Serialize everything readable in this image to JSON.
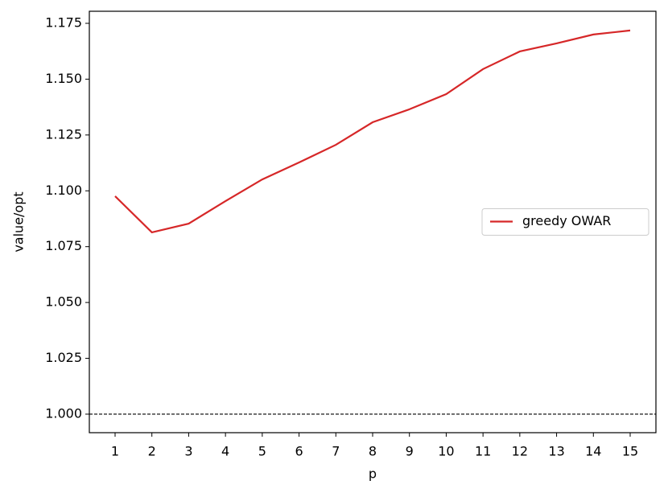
{
  "chart_data": {
    "type": "line",
    "xlabel": "p",
    "ylabel": "value/opt",
    "x": [
      1,
      2,
      3,
      4,
      5,
      6,
      7,
      8,
      9,
      10,
      11,
      12,
      13,
      14,
      15
    ],
    "series": [
      {
        "name": "greedy OWAR",
        "color": "#d62728",
        "values": [
          1.0976,
          1.0814,
          1.0853,
          1.0954,
          1.1051,
          1.1127,
          1.1206,
          1.1307,
          1.1365,
          1.1433,
          1.1545,
          1.1624,
          1.166,
          1.17,
          1.1718
        ]
      }
    ],
    "xlim": [
      0.3,
      15.7
    ],
    "xticks": [
      1,
      2,
      3,
      4,
      5,
      6,
      7,
      8,
      9,
      10,
      11,
      12,
      13,
      14,
      15
    ],
    "ylim": [
      0.9917,
      1.1804
    ],
    "yticks": [
      {
        "value": 1,
        "label": "1.000"
      },
      1.025,
      {
        "value": 1.05,
        "label": "1.050"
      },
      1.075,
      {
        "value": 1.1,
        "label": "1.100"
      },
      1.125,
      {
        "value": 1.15,
        "label": "1.150"
      },
      1.175
    ],
    "reference_line": {
      "value": 1,
      "color": "#000000",
      "style": "dashed"
    },
    "legend": "center right",
    "grid": false
  }
}
